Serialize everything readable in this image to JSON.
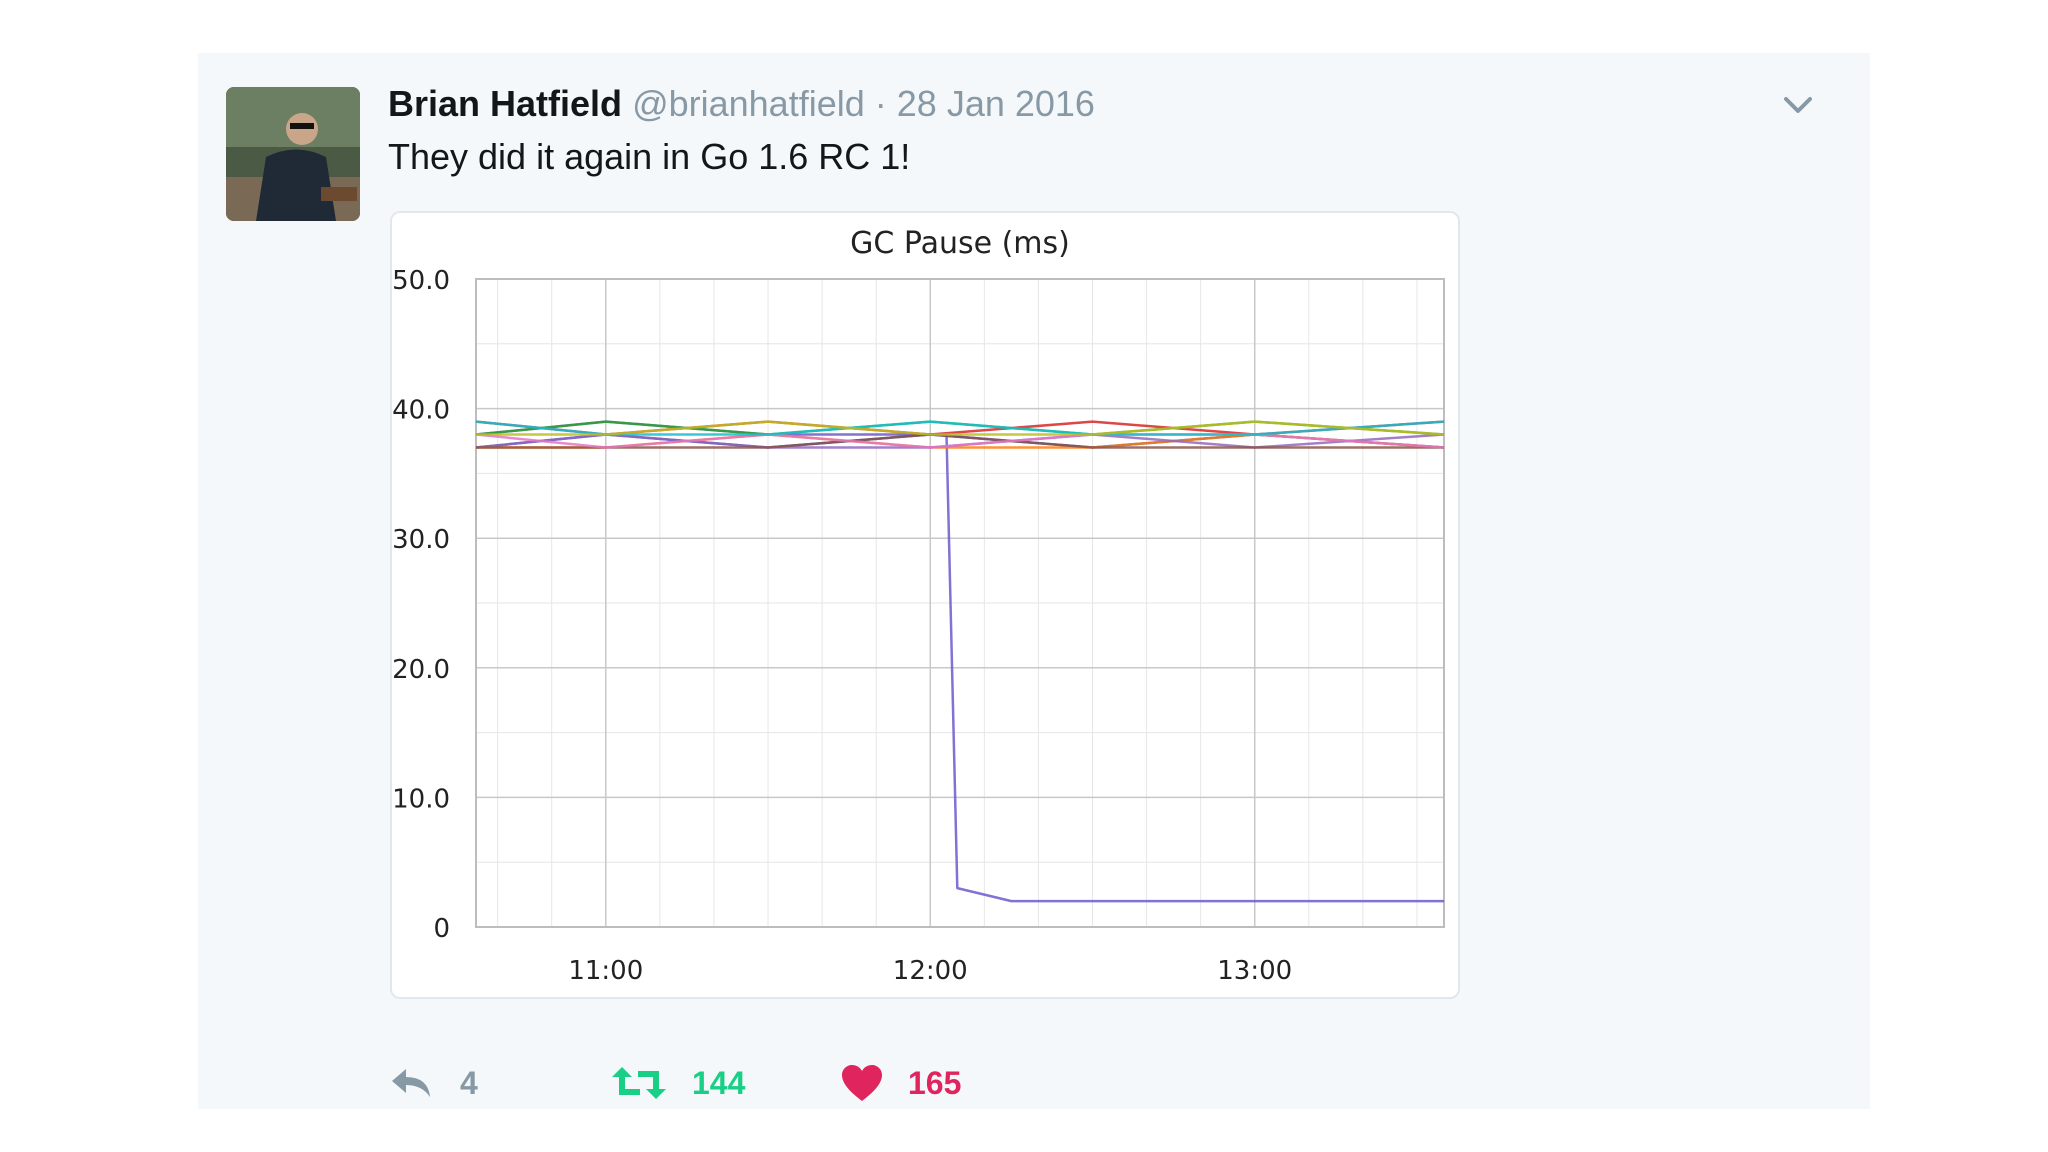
{
  "tweet": {
    "author_name": "Brian Hatfield",
    "handle": "@brianhatfield",
    "separator": "·",
    "date": "28 Jan 2016",
    "text": "They did it again in Go 1.6 RC 1!"
  },
  "actions": {
    "reply_count": "4",
    "retweet_count": "144",
    "like_count": "165"
  },
  "icons": [
    "chevron-down-icon",
    "reply-icon",
    "retweet-icon",
    "heart-icon"
  ],
  "colors": {
    "retweet": "#19cf86",
    "like": "#e0245e",
    "muted": "#8899a6"
  },
  "chart_data": {
    "type": "line",
    "title": "GC Pause (ms)",
    "xlabel": "",
    "ylabel": "",
    "ylim": [
      0,
      50
    ],
    "xlim": [
      "10:36",
      "13:35"
    ],
    "y_ticks": [
      "0",
      "10.0",
      "20.0",
      "30.0",
      "40.0",
      "50.0"
    ],
    "x_ticks": [
      "11:00",
      "12:00",
      "13:00"
    ],
    "grid": true,
    "legend": "none",
    "series": [
      {
        "color": "#6a5acd",
        "x": [
          "10:36",
          "11:00",
          "11:30",
          "12:00",
          "12:03",
          "12:05",
          "12:15",
          "12:25",
          "12:40",
          "13:00",
          "13:20",
          "13:35"
        ],
        "values": [
          38,
          39,
          38,
          38,
          38,
          3,
          2,
          2,
          2,
          2,
          2,
          2
        ]
      },
      {
        "color": "#d62728",
        "x": [
          "10:36",
          "11:00",
          "11:30",
          "12:00",
          "12:30",
          "13:00",
          "13:35"
        ],
        "values": [
          39,
          38,
          39,
          38,
          39,
          38,
          39
        ]
      },
      {
        "color": "#2ca02c",
        "x": [
          "10:36",
          "11:00",
          "11:30",
          "12:00",
          "12:30",
          "13:00",
          "13:35"
        ],
        "values": [
          38,
          39,
          38,
          39,
          38,
          39,
          38
        ]
      },
      {
        "color": "#1f3fbf",
        "x": [
          "10:36",
          "11:00",
          "11:30",
          "12:00",
          "12:30",
          "13:00",
          "13:35"
        ],
        "values": [
          37,
          38,
          37,
          38,
          37,
          38,
          37
        ]
      },
      {
        "color": "#ff7f0e",
        "x": [
          "10:36",
          "11:00",
          "11:30",
          "12:00",
          "12:30",
          "13:00",
          "13:35"
        ],
        "values": [
          37,
          37,
          38,
          37,
          37,
          38,
          37
        ]
      },
      {
        "color": "#9467bd",
        "x": [
          "10:36",
          "11:00",
          "11:30",
          "12:00",
          "12:30",
          "13:00",
          "13:35"
        ],
        "values": [
          37,
          38,
          37,
          37,
          38,
          37,
          38
        ]
      },
      {
        "color": "#8c564b",
        "x": [
          "10:36",
          "11:00",
          "11:30",
          "12:00",
          "12:30",
          "13:00",
          "13:35"
        ],
        "values": [
          37,
          37,
          37,
          38,
          37,
          37,
          37
        ]
      },
      {
        "color": "#e377c2",
        "x": [
          "10:36",
          "11:00",
          "11:30",
          "12:00",
          "12:30",
          "13:00",
          "13:35"
        ],
        "values": [
          38,
          37,
          38,
          37,
          38,
          38,
          37
        ]
      },
      {
        "color": "#17becf",
        "x": [
          "10:36",
          "11:00",
          "11:30",
          "12:00",
          "12:30",
          "13:00",
          "13:35"
        ],
        "values": [
          39,
          38,
          38,
          39,
          38,
          38,
          39
        ]
      },
      {
        "color": "#bcbd22",
        "x": [
          "10:36",
          "11:00",
          "11:30",
          "12:00",
          "12:30",
          "13:00",
          "13:35"
        ],
        "values": [
          38,
          38,
          39,
          38,
          38,
          39,
          38
        ]
      }
    ]
  }
}
